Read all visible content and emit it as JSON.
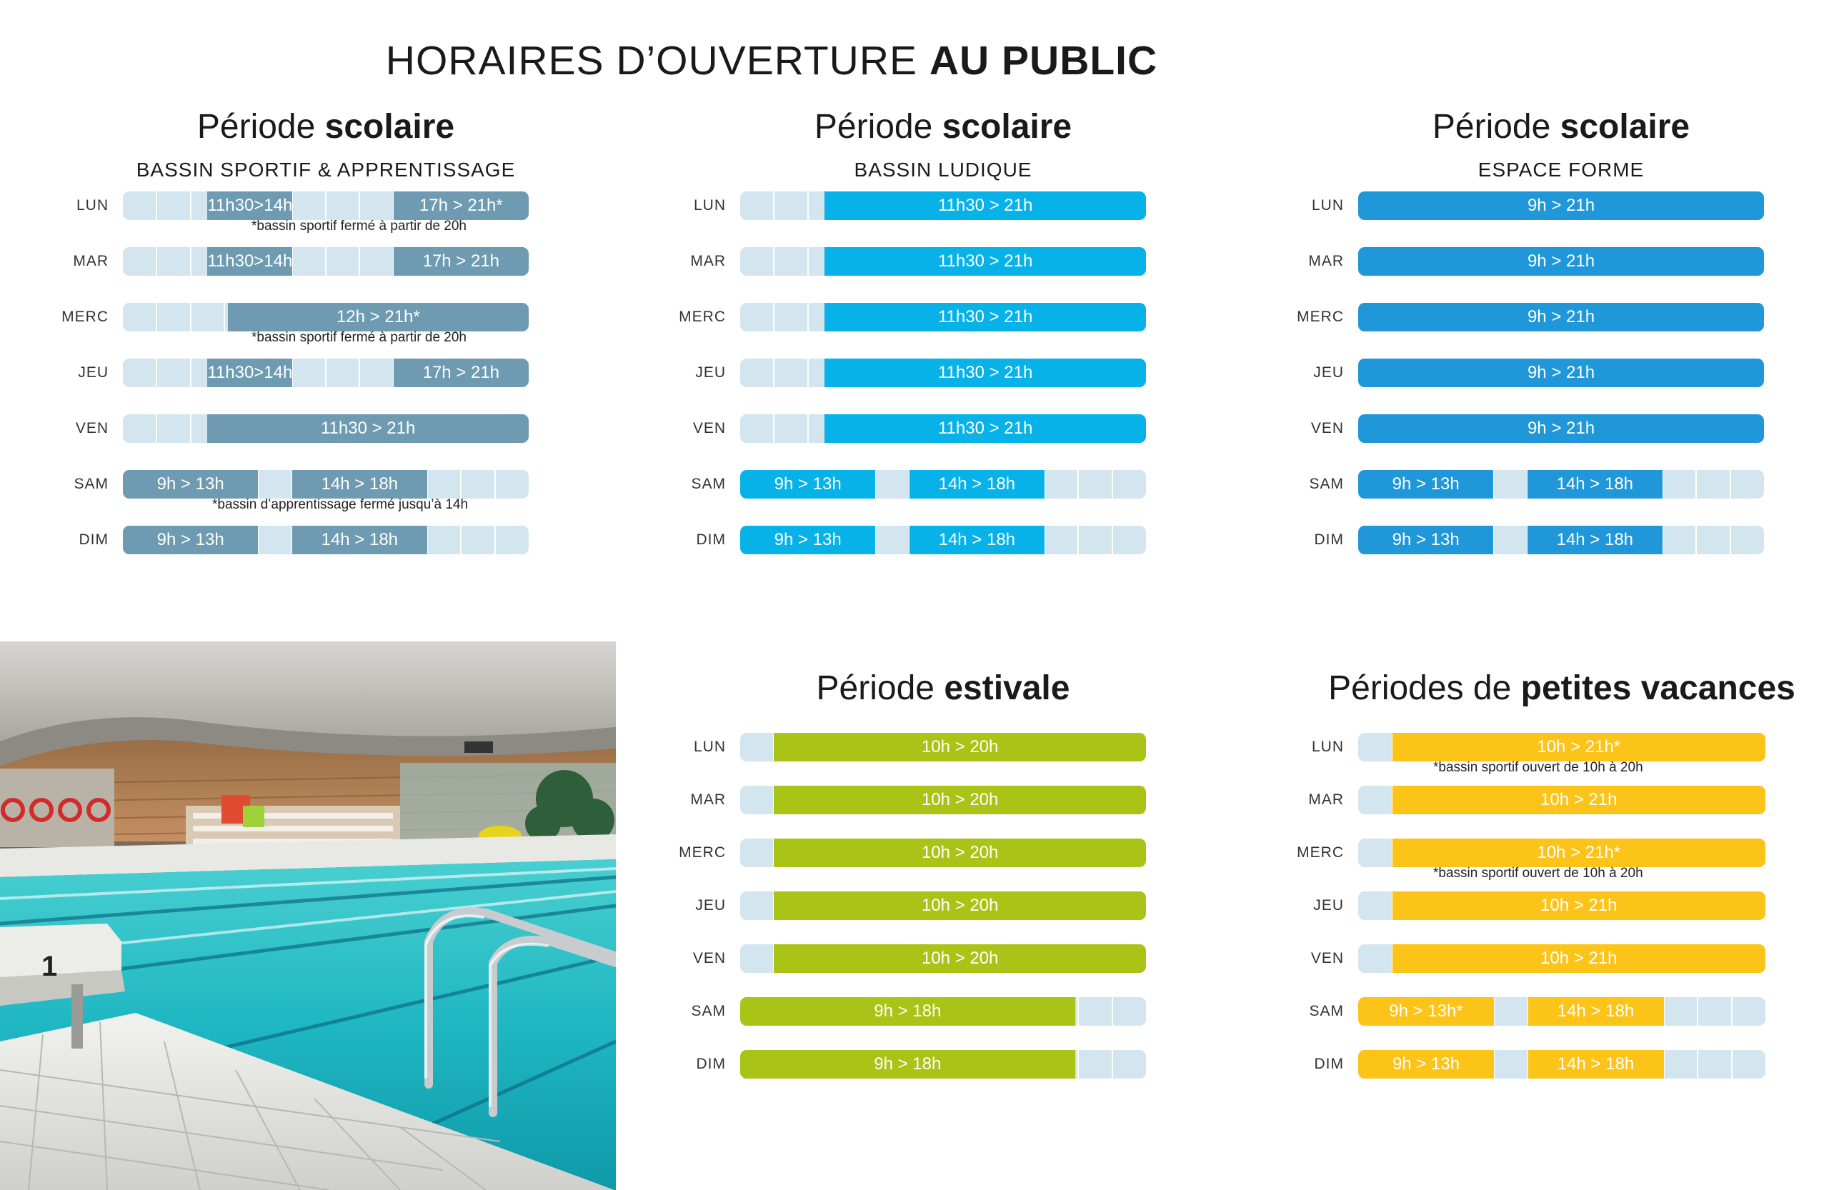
{
  "header": {
    "title_regular": "HORAIRES D’OUVERTURE ",
    "title_bold": "AU PUBLIC"
  },
  "colors": {
    "empty": "#d3e5ef",
    "sportif": "#6e9bb1",
    "ludique": "#07b2e8",
    "forme": "#1f97d8",
    "estivale": "#a9c416",
    "vacances": "#fcc419"
  },
  "sections": [
    {
      "title_regular": "Période ",
      "title_bold": "scolaire",
      "subtitle": "BASSIN SPORTIF & APPRENTISSAGE",
      "rows": [
        {
          "day": "LUN",
          "segments": [
            {
              "label": "11h30>14h"
            },
            {
              "label": "17h > 21h*"
            }
          ],
          "note": "*bassin sportif fermé à partir de 20h"
        },
        {
          "day": "MAR",
          "segments": [
            {
              "label": "11h30>14h"
            },
            {
              "label": "17h > 21h"
            }
          ]
        },
        {
          "day": "MERC",
          "segments": [
            {
              "label": "12h > 21h*"
            }
          ],
          "note": "*bassin sportif fermé à partir de 20h"
        },
        {
          "day": "JEU",
          "segments": [
            {
              "label": "11h30>14h"
            },
            {
              "label": "17h > 21h"
            }
          ]
        },
        {
          "day": "VEN",
          "segments": [
            {
              "label": "11h30 > 21h"
            }
          ]
        },
        {
          "day": "SAM",
          "segments": [
            {
              "label": "9h > 13h"
            },
            {
              "label": "14h > 18h"
            }
          ],
          "note": "*bassin d’apprentissage fermé jusqu’à 14h"
        },
        {
          "day": "DIM",
          "segments": [
            {
              "label": "9h > 13h"
            },
            {
              "label": "14h > 18h"
            }
          ]
        }
      ]
    },
    {
      "title_regular": "Période ",
      "title_bold": "scolaire",
      "subtitle": "BASSIN LUDIQUE",
      "rows": [
        {
          "day": "LUN",
          "segments": [
            {
              "label": "11h30 > 21h"
            }
          ]
        },
        {
          "day": "MAR",
          "segments": [
            {
              "label": "11h30 > 21h"
            }
          ]
        },
        {
          "day": "MERC",
          "segments": [
            {
              "label": "11h30 > 21h"
            }
          ]
        },
        {
          "day": "JEU",
          "segments": [
            {
              "label": "11h30 > 21h"
            }
          ]
        },
        {
          "day": "VEN",
          "segments": [
            {
              "label": "11h30 > 21h"
            }
          ]
        },
        {
          "day": "SAM",
          "segments": [
            {
              "label": "9h > 13h"
            },
            {
              "label": "14h > 18h"
            }
          ]
        },
        {
          "day": "DIM",
          "segments": [
            {
              "label": "9h > 13h"
            },
            {
              "label": "14h > 18h"
            }
          ]
        }
      ]
    },
    {
      "title_regular": "Période ",
      "title_bold": "scolaire",
      "subtitle": "ESPACE FORME",
      "rows": [
        {
          "day": "LUN",
          "segments": [
            {
              "label": "9h > 21h"
            }
          ]
        },
        {
          "day": "MAR",
          "segments": [
            {
              "label": "9h > 21h"
            }
          ]
        },
        {
          "day": "MERC",
          "segments": [
            {
              "label": "9h > 21h"
            }
          ]
        },
        {
          "day": "JEU",
          "segments": [
            {
              "label": "9h > 21h"
            }
          ]
        },
        {
          "day": "VEN",
          "segments": [
            {
              "label": "9h > 21h"
            }
          ]
        },
        {
          "day": "SAM",
          "segments": [
            {
              "label": "9h > 13h"
            },
            {
              "label": "14h > 18h"
            }
          ]
        },
        {
          "day": "DIM",
          "segments": [
            {
              "label": "9h > 13h"
            },
            {
              "label": "14h > 18h"
            }
          ]
        }
      ]
    },
    {
      "title_regular": "Période ",
      "title_bold": "estivale",
      "subtitle": "",
      "rows": [
        {
          "day": "LUN",
          "segments": [
            {
              "label": "10h > 20h"
            }
          ]
        },
        {
          "day": "MAR",
          "segments": [
            {
              "label": "10h > 20h"
            }
          ]
        },
        {
          "day": "MERC",
          "segments": [
            {
              "label": "10h > 20h"
            }
          ]
        },
        {
          "day": "JEU",
          "segments": [
            {
              "label": "10h > 20h"
            }
          ]
        },
        {
          "day": "VEN",
          "segments": [
            {
              "label": "10h > 20h"
            }
          ]
        },
        {
          "day": "SAM",
          "segments": [
            {
              "label": "9h > 18h"
            }
          ]
        },
        {
          "day": "DIM",
          "segments": [
            {
              "label": "9h > 18h"
            }
          ]
        }
      ]
    },
    {
      "title_regular": "Périodes de ",
      "title_bold": "petites vacances",
      "subtitle": "",
      "rows": [
        {
          "day": "LUN",
          "segments": [
            {
              "label": "10h > 21h*"
            }
          ],
          "note": "*bassin sportif ouvert de 10h à 20h"
        },
        {
          "day": "MAR",
          "segments": [
            {
              "label": "10h > 21h"
            }
          ]
        },
        {
          "day": "MERC",
          "segments": [
            {
              "label": "10h > 21h*"
            }
          ],
          "note": "*bassin sportif ouvert de 10h à 20h"
        },
        {
          "day": "JEU",
          "segments": [
            {
              "label": "10h > 21h"
            }
          ]
        },
        {
          "day": "VEN",
          "segments": [
            {
              "label": "10h > 21h"
            }
          ]
        },
        {
          "day": "SAM",
          "segments": [
            {
              "label": "9h > 13h*"
            },
            {
              "label": "14h > 18h"
            }
          ]
        },
        {
          "day": "DIM",
          "segments": [
            {
              "label": "9h > 13h"
            },
            {
              "label": "14h > 18h"
            }
          ]
        }
      ]
    }
  ],
  "photo": {
    "lane_number": "1"
  }
}
